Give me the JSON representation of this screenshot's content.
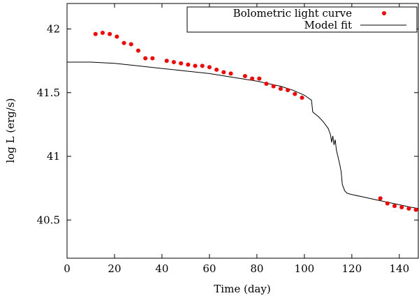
{
  "chart_data": {
    "type": "scatter",
    "title": "",
    "xlabel": "Time (day)",
    "ylabel": "log L (erg/s)",
    "xlim": [
      0,
      148
    ],
    "ylim": [
      40.2,
      42.2
    ],
    "xticks": [
      0,
      20,
      40,
      60,
      80,
      100,
      120,
      140
    ],
    "yticks": [
      40.5,
      41,
      41.5,
      42
    ],
    "xtick_labels": [
      "0",
      "20",
      "40",
      "60",
      "80",
      "100",
      "120",
      "140"
    ],
    "ytick_labels": [
      "40.5",
      "41",
      "41.5",
      "42"
    ],
    "legend_position": "top-right",
    "series": [
      {
        "name": "Bolometric light curve",
        "kind": "points",
        "color": "#ff0000",
        "x": [
          12,
          15,
          18,
          21,
          24,
          27,
          30,
          33,
          36,
          42,
          45,
          48,
          51,
          54,
          57,
          60,
          63,
          66,
          69,
          75,
          78,
          81,
          84,
          87,
          90,
          93,
          96,
          99,
          132,
          135,
          138,
          141,
          144,
          147
        ],
        "y": [
          41.96,
          41.97,
          41.96,
          41.94,
          41.89,
          41.88,
          41.83,
          41.77,
          41.77,
          41.75,
          41.74,
          41.73,
          41.72,
          41.71,
          41.71,
          41.7,
          41.68,
          41.66,
          41.65,
          41.63,
          41.61,
          41.61,
          41.57,
          41.55,
          41.53,
          41.52,
          41.49,
          41.46,
          40.67,
          40.63,
          40.61,
          40.6,
          40.59,
          40.58
        ]
      },
      {
        "name": "Model fit",
        "kind": "line",
        "color": "#000000",
        "x": [
          0,
          10,
          20,
          30,
          40,
          50,
          60,
          70,
          80,
          90,
          95,
          100,
          103,
          103.5,
          104,
          106,
          108,
          110,
          111,
          111.5,
          112,
          112.5,
          113,
          113.5,
          114,
          114.5,
          115,
          115.5,
          116,
          117,
          118,
          120,
          125,
          130,
          135,
          140,
          145,
          148
        ],
        "y": [
          41.74,
          41.74,
          41.73,
          41.71,
          41.69,
          41.67,
          41.65,
          41.62,
          41.59,
          41.55,
          41.52,
          41.48,
          41.44,
          41.35,
          41.34,
          41.31,
          41.27,
          41.22,
          41.17,
          41.11,
          41.16,
          41.09,
          41.13,
          41.05,
          41.01,
          40.97,
          40.93,
          40.88,
          40.78,
          40.73,
          40.71,
          40.7,
          40.68,
          40.66,
          40.64,
          40.62,
          40.6,
          40.59
        ]
      }
    ]
  }
}
